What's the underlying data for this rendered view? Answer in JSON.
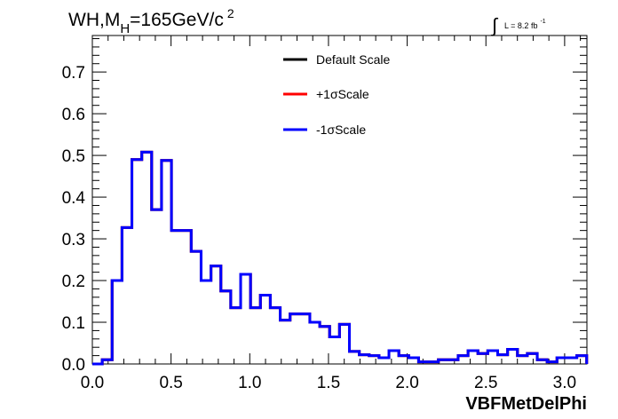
{
  "chart_data": {
    "type": "line",
    "title": {
      "prefix": "WH,M",
      "subscript": "H",
      "suffix": "=165GeV/c",
      "superscript": "2"
    },
    "luminosity": {
      "integral": "∫",
      "text": "L = 8.2 fb",
      "superscript": "-1"
    },
    "xlabel": "VBFMetDelPhi",
    "ylabel": "",
    "xlim": [
      0,
      3.1416
    ],
    "ylim": [
      0,
      0.7875
    ],
    "xticks": [
      "0.0",
      "0.5",
      "1.0",
      "1.5",
      "2.0",
      "2.5",
      "3.0"
    ],
    "xtick_values": [
      0,
      0.5,
      1.0,
      1.5,
      2.0,
      2.5,
      3.0
    ],
    "yticks": [
      "0.0",
      "0.1",
      "0.2",
      "0.3",
      "0.4",
      "0.5",
      "0.6",
      "0.7"
    ],
    "ytick_values": [
      0,
      0.1,
      0.2,
      0.3,
      0.4,
      0.5,
      0.6,
      0.7
    ],
    "bin_width": 0.0628,
    "values": [
      0.0,
      0.01,
      0.2,
      0.327,
      0.49,
      0.508,
      0.37,
      0.488,
      0.32,
      0.32,
      0.27,
      0.2,
      0.235,
      0.175,
      0.135,
      0.215,
      0.135,
      0.165,
      0.135,
      0.105,
      0.12,
      0.12,
      0.1,
      0.09,
      0.065,
      0.095,
      0.03,
      0.022,
      0.02,
      0.015,
      0.032,
      0.02,
      0.015,
      0.005,
      0.005,
      0.01,
      0.01,
      0.02,
      0.032,
      0.025,
      0.032,
      0.022,
      0.035,
      0.02,
      0.025,
      0.01,
      0.005,
      0.015,
      0.015,
      0.02
    ],
    "legend_position": "top-center",
    "series": [
      {
        "name": "Default Scale",
        "color": "#000000"
      },
      {
        "name": "+1σScale",
        "color": "#ff0000"
      },
      {
        "name": "-1σScale",
        "color": "#0000ff"
      }
    ],
    "grid": false
  }
}
